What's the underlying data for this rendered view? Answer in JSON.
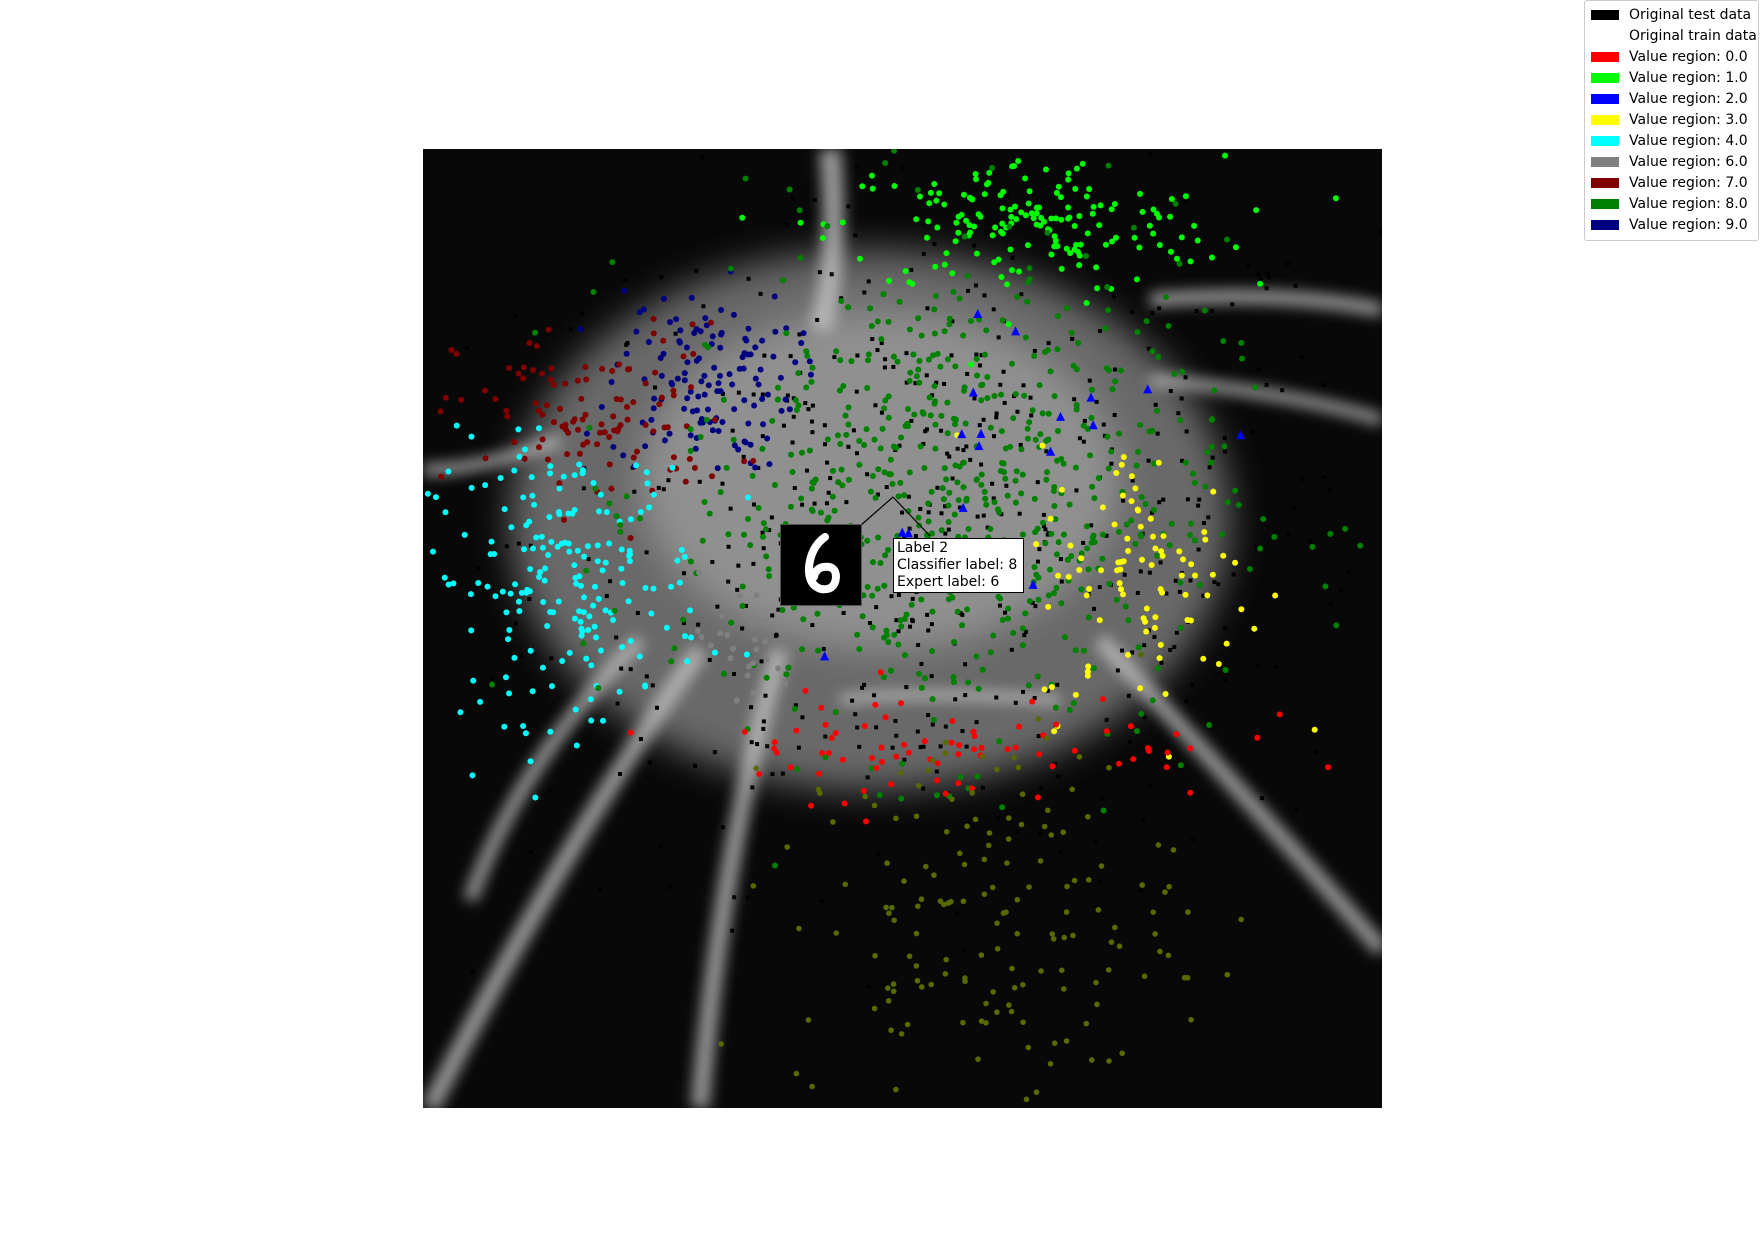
{
  "chart_data": {
    "type": "scatter",
    "title": "",
    "xlabel": "",
    "ylabel": "",
    "axes_visible": false,
    "grid": false,
    "background": "grayscale density heatmap of decision boundaries",
    "legend_position": "top-right",
    "legend": [
      {
        "label": "Original test data",
        "color": "#000000"
      },
      {
        "label": "Original train data",
        "color": "#ffffff"
      },
      {
        "label": "Value region: 0.0",
        "color": "#ff0000"
      },
      {
        "label": "Value region: 1.0",
        "color": "#00ff00"
      },
      {
        "label": "Value region: 2.0",
        "color": "#0000ff"
      },
      {
        "label": "Value region: 3.0",
        "color": "#ffff00"
      },
      {
        "label": "Value region: 4.0",
        "color": "#00ffff"
      },
      {
        "label": "Value region: 6.0",
        "color": "#808080"
      },
      {
        "label": "Value region: 7.0",
        "color": "#800000"
      },
      {
        "label": "Value region: 8.0",
        "color": "#008000"
      },
      {
        "label": "Value region: 9.0",
        "color": "#000080"
      }
    ],
    "xlim": [
      0,
      1
    ],
    "ylim": [
      0,
      1
    ],
    "clusters": [
      {
        "region": "1.0",
        "color": "#00ff00",
        "cx": 0.63,
        "cy": 0.92,
        "rx": 0.17,
        "ry": 0.06,
        "n": 170
      },
      {
        "region": "9.0",
        "color": "#000080",
        "cx": 0.29,
        "cy": 0.76,
        "rx": 0.08,
        "ry": 0.08,
        "n": 130
      },
      {
        "region": "7.0",
        "color": "#800000",
        "cx": 0.18,
        "cy": 0.72,
        "rx": 0.12,
        "ry": 0.08,
        "n": 110
      },
      {
        "region": "4.0",
        "color": "#00ffff",
        "cx": 0.15,
        "cy": 0.55,
        "rx": 0.12,
        "ry": 0.12,
        "n": 190
      },
      {
        "region": "8.0",
        "color": "#008000",
        "cx": 0.55,
        "cy": 0.64,
        "rx": 0.24,
        "ry": 0.22,
        "n": 620
      },
      {
        "region": "3.0",
        "color": "#ffff00",
        "cx": 0.76,
        "cy": 0.55,
        "rx": 0.1,
        "ry": 0.12,
        "n": 90
      },
      {
        "region": "0.0",
        "color": "#ff0000",
        "cx": 0.55,
        "cy": 0.38,
        "rx": 0.24,
        "ry": 0.05,
        "n": 75
      },
      {
        "region": "6.0",
        "color": "#808080",
        "cx": 0.33,
        "cy": 0.48,
        "rx": 0.05,
        "ry": 0.06,
        "n": 25
      },
      {
        "region": "2.0",
        "color": "#0000ff",
        "cx": 0.6,
        "cy": 0.7,
        "rx": 0.2,
        "ry": 0.16,
        "n": 18
      }
    ],
    "annotation": {
      "lines": [
        "Label 2",
        "Classifier label: 8",
        "Expert label: 6"
      ],
      "thumbnail_digit": "6",
      "anchor": {
        "x": 0.49,
        "y": 0.635
      }
    }
  }
}
